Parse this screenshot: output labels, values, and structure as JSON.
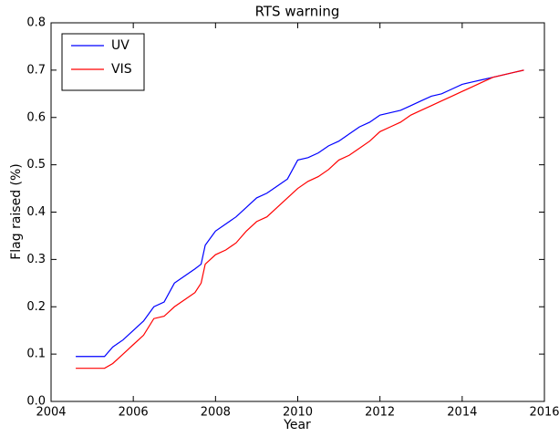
{
  "chart_data": {
    "type": "line",
    "title": "RTS warning",
    "xlabel": "Year",
    "ylabel": "Flag raised (%)",
    "x": [
      2004.6,
      2005.3,
      2005.5,
      2005.75,
      2006.0,
      2006.25,
      2006.5,
      2006.75,
      2007.0,
      2007.25,
      2007.5,
      2007.65,
      2007.75,
      2008.0,
      2008.25,
      2008.5,
      2008.75,
      2009.0,
      2009.25,
      2009.5,
      2009.75,
      2010.0,
      2010.25,
      2010.5,
      2010.75,
      2011.0,
      2011.25,
      2011.5,
      2011.75,
      2012.0,
      2012.25,
      2012.5,
      2012.75,
      2013.0,
      2013.25,
      2013.5,
      2013.75,
      2014.0,
      2014.25,
      2014.5,
      2014.75,
      2015.0,
      2015.25,
      2015.5
    ],
    "series": [
      {
        "name": "UV",
        "color": "#0000ff",
        "values": [
          0.095,
          0.095,
          0.115,
          0.13,
          0.15,
          0.17,
          0.2,
          0.21,
          0.25,
          0.265,
          0.28,
          0.29,
          0.33,
          0.36,
          0.375,
          0.39,
          0.41,
          0.43,
          0.44,
          0.455,
          0.47,
          0.51,
          0.515,
          0.525,
          0.54,
          0.55,
          0.565,
          0.58,
          0.59,
          0.605,
          0.61,
          0.615,
          0.625,
          0.635,
          0.645,
          0.65,
          0.66,
          0.67,
          0.675,
          0.68,
          0.685,
          0.69,
          0.695,
          0.7
        ]
      },
      {
        "name": "VIS",
        "color": "#ff0000",
        "values": [
          0.07,
          0.07,
          0.08,
          0.1,
          0.12,
          0.14,
          0.175,
          0.18,
          0.2,
          0.215,
          0.23,
          0.25,
          0.29,
          0.31,
          0.32,
          0.335,
          0.36,
          0.38,
          0.39,
          0.41,
          0.43,
          0.45,
          0.465,
          0.475,
          0.49,
          0.51,
          0.52,
          0.535,
          0.55,
          0.57,
          0.58,
          0.59,
          0.605,
          0.615,
          0.625,
          0.635,
          0.645,
          0.655,
          0.665,
          0.675,
          0.685,
          0.69,
          0.695,
          0.7
        ]
      }
    ],
    "xlim": [
      2004,
      2016
    ],
    "xticks": [
      2004,
      2006,
      2008,
      2010,
      2012,
      2014,
      2016
    ],
    "ylim": [
      0,
      0.8
    ],
    "yticks": [
      {
        "value": 0,
        "label": "0.0"
      },
      0.1,
      0.2,
      0.3,
      0.4,
      0.5,
      0.6,
      0.7,
      0.8
    ],
    "grid": false,
    "legend": "upper left"
  }
}
